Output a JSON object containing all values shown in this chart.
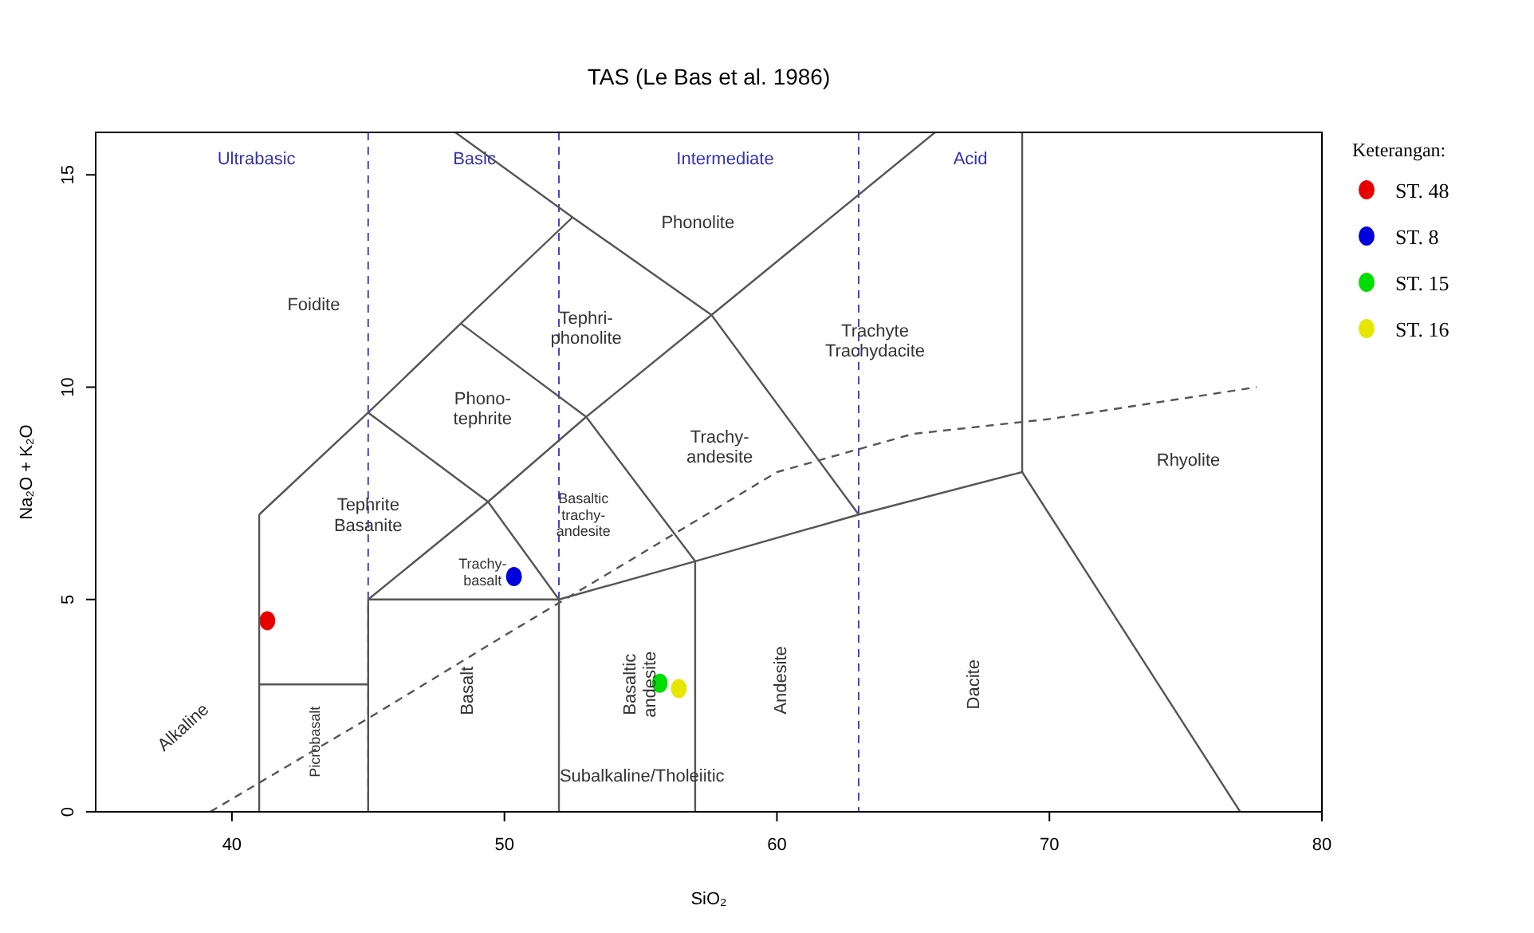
{
  "chart_data": {
    "type": "scatter",
    "title": "TAS (Le Bas et al. 1986)",
    "xlabel": "SiO₂",
    "ylabel": "Na₂O + K₂O",
    "legend_title": "Keterangan:",
    "legend": "right",
    "grid": false,
    "xlim": [
      35,
      80
    ],
    "xticks": [
      40,
      50,
      60,
      70,
      80
    ],
    "ylim": [
      0,
      16
    ],
    "yticks": [
      0,
      5,
      10,
      15
    ],
    "series": [
      {
        "name": "ST. 48",
        "color": "#e60000",
        "marker": "circle",
        "x": [
          41.3
        ],
        "values": [
          4.5
        ]
      },
      {
        "name": "ST. 8",
        "color": "#0000dd",
        "marker": "circle",
        "x": [
          50.35
        ],
        "values": [
          5.54
        ]
      },
      {
        "name": "ST. 15",
        "color": "#00dd00",
        "marker": "circle",
        "x": [
          55.7
        ],
        "values": [
          3.03
        ]
      },
      {
        "name": "ST. 16",
        "color": "#e6e600",
        "marker": "circle",
        "x": [
          56.4
        ],
        "values": [
          2.9
        ]
      },
      {
        "type": "line",
        "color": "#555555",
        "x": [
          41,
          41
        ],
        "values": [
          0,
          7
        ]
      },
      {
        "type": "line",
        "color": "#555555",
        "x": [
          41,
          45
        ],
        "values": [
          3,
          3
        ]
      },
      {
        "type": "line",
        "color": "#555555",
        "x": [
          45,
          45
        ],
        "values": [
          0,
          5
        ]
      },
      {
        "type": "line",
        "color": "#555555",
        "x": [
          52,
          52
        ],
        "values": [
          0,
          5
        ]
      },
      {
        "type": "line",
        "color": "#555555",
        "x": [
          57,
          57
        ],
        "values": [
          0,
          5.9
        ]
      },
      {
        "type": "line",
        "color": "#555555",
        "x": [
          45,
          52,
          57,
          63,
          69
        ],
        "values": [
          5,
          5,
          5.9,
          7,
          8
        ]
      },
      {
        "type": "line",
        "color": "#555555",
        "x": [
          69,
          69
        ],
        "values": [
          8,
          16
        ]
      },
      {
        "type": "line",
        "color": "#555555",
        "x": [
          69,
          77
        ],
        "values": [
          8,
          0
        ]
      },
      {
        "type": "line",
        "color": "#555555",
        "x": [
          41,
          45,
          48.4,
          52.5
        ],
        "values": [
          7,
          9.4,
          11.5,
          14
        ]
      },
      {
        "type": "line",
        "color": "#555555",
        "x": [
          45,
          49.4,
          52
        ],
        "values": [
          9.4,
          7.3,
          5
        ]
      },
      {
        "type": "line",
        "color": "#555555",
        "x": [
          48.4,
          53,
          57
        ],
        "values": [
          11.5,
          9.3,
          5.9
        ]
      },
      {
        "type": "line",
        "color": "#555555",
        "x": [
          48.2,
          52.5,
          57.6,
          63
        ],
        "values": [
          16,
          14,
          11.7,
          7
        ]
      },
      {
        "type": "line",
        "color": "#555555",
        "x": [
          45,
          49.4,
          53,
          57.6,
          65.8
        ],
        "values": [
          5,
          7.3,
          9.3,
          11.7,
          16
        ]
      },
      {
        "type": "line",
        "color": "#555555",
        "line_style": "dashed",
        "x": [
          39.2,
          45,
          50,
          55,
          60,
          65,
          70,
          77.6
        ],
        "values": [
          0,
          2.2,
          4.15,
          6.07,
          8.0,
          8.9,
          9.25,
          10
        ]
      }
    ],
    "ref_lines": [
      {
        "axis": "x",
        "value": 45,
        "color": "#4444cc",
        "line_style": "dashed"
      },
      {
        "axis": "x",
        "value": 52,
        "color": "#4444cc",
        "line_style": "dashed"
      },
      {
        "axis": "x",
        "value": 63,
        "color": "#4444cc",
        "line_style": "dashed"
      }
    ],
    "annotations": [
      "Ultrabasic",
      "Basic",
      "Intermediate",
      "Acid",
      "Phonolite",
      "Foidite",
      "Tephri-\nphonolite",
      "Trachyte\nTrachydacite",
      "Phono-\ntephrite",
      "Trachy-\nandesite",
      "Rhyolite",
      "Tephrite\nBasanite",
      "Basaltic\ntrachy-\nandesite",
      "Trachy-\nbasalt",
      "Basalt",
      "Basaltic\nandesite",
      "Andesite",
      "Dacite",
      "Picrobasalt",
      "Alkaline",
      "Subalkaline/Tholeiitic"
    ]
  }
}
